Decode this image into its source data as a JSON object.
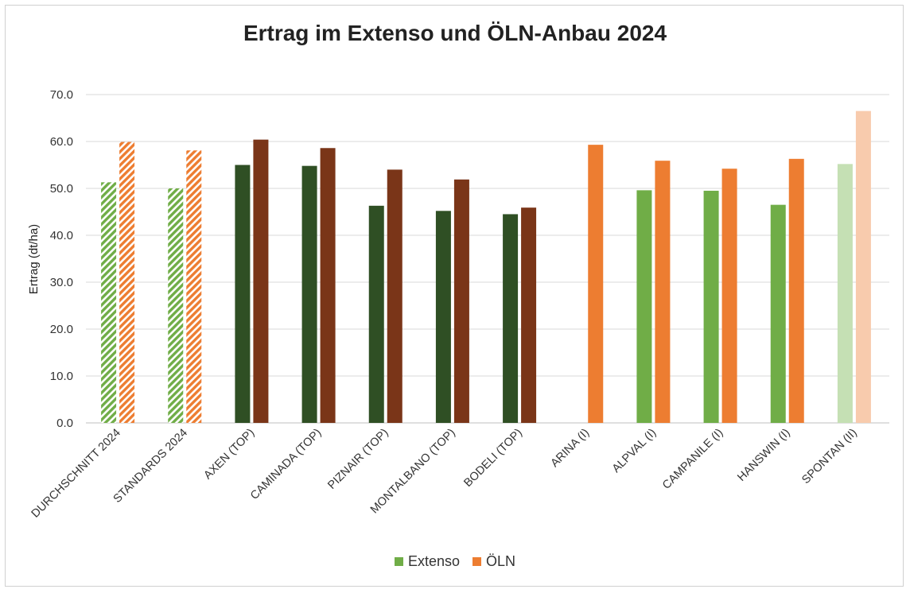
{
  "chart_data": {
    "type": "bar",
    "title": "Ertrag im Extenso und ÖLN-Anbau 2024",
    "xlabel": "",
    "ylabel": "Ertrag (dt/ha)",
    "ylim": [
      0,
      70
    ],
    "ytick_step": 10,
    "ytick_labels": [
      "0.0",
      "10.0",
      "20.0",
      "30.0",
      "40.0",
      "50.0",
      "60.0",
      "70.0"
    ],
    "grid": true,
    "legend_position": "bottom",
    "categories": [
      "DURCHSCHNITT 2024",
      "STANDARDS 2024",
      "AXEN (TOP)",
      "CAMINADA (TOP)",
      "PIZNAIR (TOP)",
      "MONTALBANO (TOP)",
      "BODELI (TOP)",
      "ARINA (I)",
      "ALPVAL (I)",
      "CAMPANILE (I)",
      "HANSWIN (I)",
      "SPONTAN (II)"
    ],
    "series": [
      {
        "name": "Extenso",
        "legend_color": "#70ad47",
        "values": [
          51.3,
          50.0,
          55.0,
          54.8,
          46.3,
          45.2,
          44.5,
          null,
          49.6,
          49.5,
          46.5,
          55.2
        ],
        "colors": [
          "#70ad47",
          "#70ad47",
          "#2f4f24",
          "#2f4f24",
          "#2f4f24",
          "#2f4f24",
          "#2f4f24",
          "#70ad47",
          "#70ad47",
          "#70ad47",
          "#70ad47",
          "#c5e0b4"
        ],
        "hatched": [
          true,
          true,
          false,
          false,
          false,
          false,
          false,
          false,
          false,
          false,
          false,
          false
        ]
      },
      {
        "name": "ÖLN",
        "legend_color": "#ed7d31",
        "values": [
          59.9,
          58.1,
          60.4,
          58.6,
          54.0,
          51.9,
          45.9,
          59.3,
          55.9,
          54.2,
          56.3,
          66.5
        ],
        "colors": [
          "#ed7d31",
          "#ed7d31",
          "#7a3518",
          "#7a3518",
          "#7a3518",
          "#7a3518",
          "#7a3518",
          "#ed7d31",
          "#ed7d31",
          "#ed7d31",
          "#ed7d31",
          "#f8cbad"
        ],
        "hatched": [
          true,
          true,
          false,
          false,
          false,
          false,
          false,
          false,
          false,
          false,
          false,
          false
        ]
      }
    ]
  }
}
